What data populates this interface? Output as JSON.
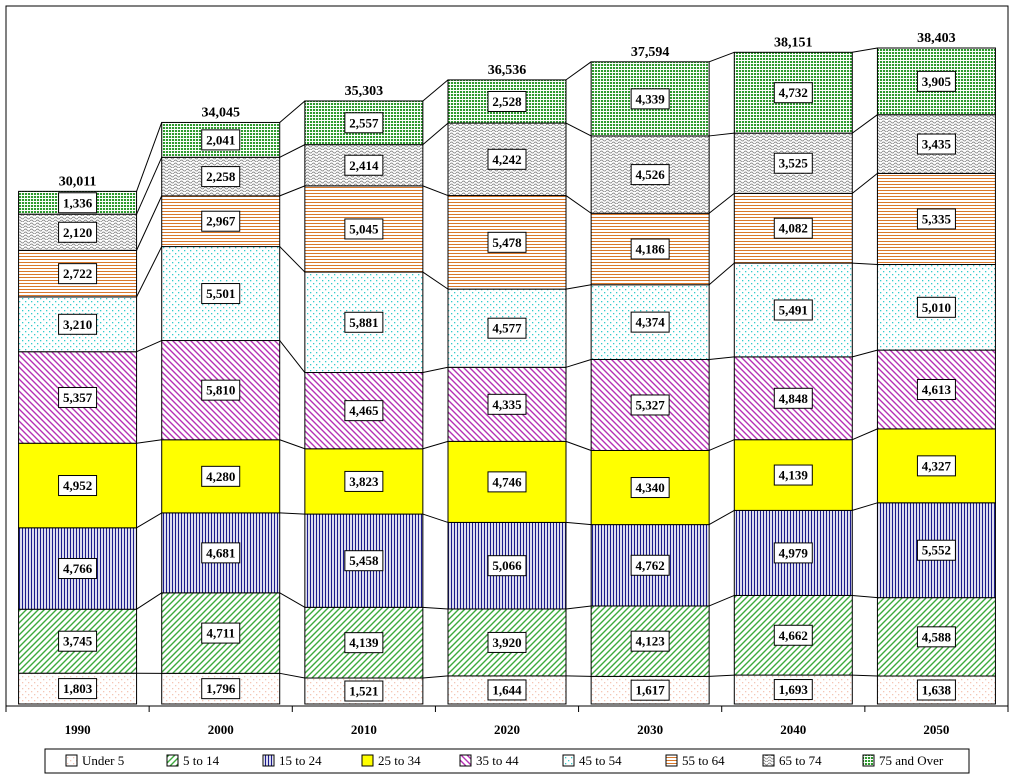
{
  "chart_data": {
    "type": "bar",
    "stacked": true,
    "categories": [
      "1990",
      "2000",
      "2010",
      "2020",
      "2030",
      "2040",
      "2050"
    ],
    "totals": [
      "30,011",
      "34,045",
      "35,303",
      "36,536",
      "37,594",
      "38,151",
      "38,403"
    ],
    "series": [
      {
        "name": "Under 5",
        "values": [
          1803,
          1796,
          1521,
          1644,
          1617,
          1693,
          1638
        ],
        "color": "#f4c6b6",
        "pattern": "dots"
      },
      {
        "name": "5 to 14",
        "values": [
          3745,
          4711,
          4139,
          3920,
          4123,
          4662,
          4588
        ],
        "color": "#3daa3d",
        "pattern": "diag-right"
      },
      {
        "name": "15 to 24",
        "values": [
          4766,
          4681,
          5458,
          5066,
          4762,
          4979,
          5552
        ],
        "color": "#1c1c8c",
        "pattern": "vertical"
      },
      {
        "name": "25 to 34",
        "values": [
          4952,
          4280,
          3823,
          4746,
          4340,
          4139,
          4327
        ],
        "color": "#ffff00",
        "pattern": "solid"
      },
      {
        "name": "35 to 44",
        "values": [
          5357,
          5810,
          4465,
          4335,
          5327,
          4848,
          4613
        ],
        "color": "#b531b5",
        "pattern": "diag-left"
      },
      {
        "name": "45 to 54",
        "values": [
          3210,
          5501,
          5881,
          4577,
          4374,
          5491,
          5010
        ],
        "color": "#33cccc",
        "pattern": "dots"
      },
      {
        "name": "55 to 64",
        "values": [
          2722,
          2967,
          5045,
          5478,
          4186,
          4082,
          5335
        ],
        "color": "#d9782a",
        "pattern": "horizontal"
      },
      {
        "name": "65 to 74",
        "values": [
          2120,
          2258,
          2414,
          4242,
          4526,
          3525,
          3435
        ],
        "color": "#8c8c8c",
        "pattern": "wave"
      },
      {
        "name": "75 and Over",
        "values": [
          1336,
          2041,
          2557,
          2528,
          4339,
          4732,
          3905
        ],
        "color": "#2e9a2e",
        "pattern": "grid"
      }
    ],
    "grid": false,
    "legend_position": "bottom"
  }
}
